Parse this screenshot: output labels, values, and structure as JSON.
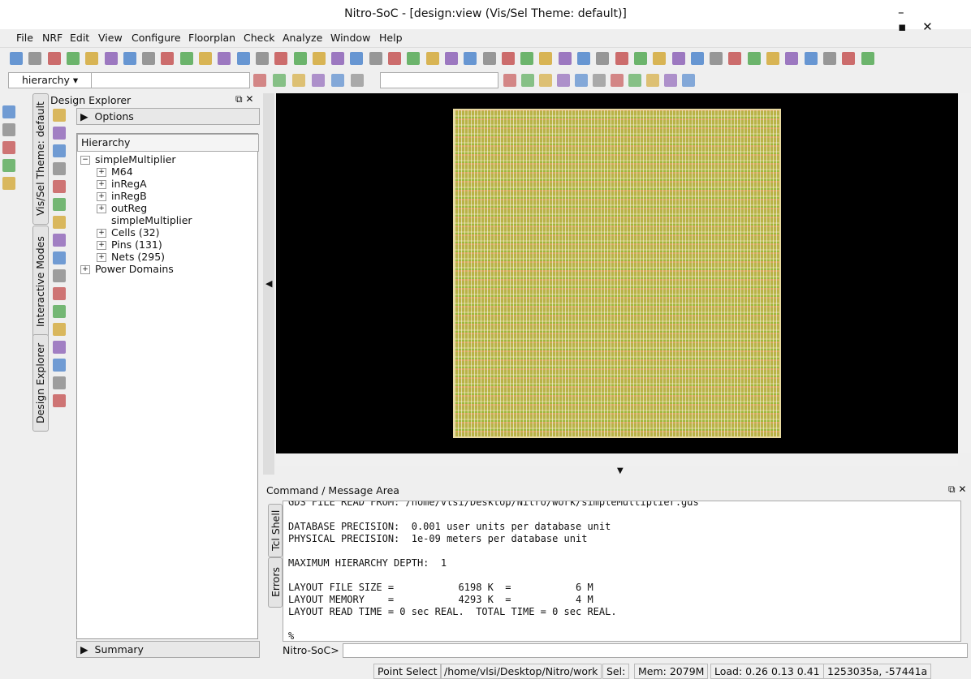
{
  "window": {
    "title": "Nitro-SoC - [design:view  (Vis/Sel Theme: default)]"
  },
  "menu": [
    "File",
    "NRF",
    "Edit",
    "View",
    "Configure",
    "Floorplan",
    "Check",
    "Analyze",
    "Window",
    "Help"
  ],
  "toolbar": {
    "hierarchy_select": "hierarchy"
  },
  "side_tabs": [
    "Vis/Sel Theme: default",
    "Interactive Modes",
    "Design Explorer"
  ],
  "explorer": {
    "title": "Design Explorer",
    "options": "Options",
    "hierarchy_label": "Hierarchy",
    "tree": [
      {
        "label": "simpleMultiplier",
        "children": [
          {
            "label": "M64"
          },
          {
            "label": "inRegA"
          },
          {
            "label": "inRegB"
          },
          {
            "label": "outReg"
          },
          {
            "label": "simpleMultiplier"
          },
          {
            "label": "Cells (32)"
          },
          {
            "label": "Pins (131)"
          },
          {
            "label": "Nets (295)"
          }
        ]
      },
      {
        "label": "Power Domains"
      }
    ],
    "summary": "Summary"
  },
  "command": {
    "title": "Command / Message Area",
    "tabs": [
      "Tcl Shell",
      "Errors"
    ],
    "blocks": [
      [
        "GDS FILE READ FROM: /home/vlsi/Desktop/Nitro/work/simpleMultiplier.gds"
      ],
      [
        "DATABASE PRECISION:  0.001 user units per database unit",
        "PHYSICAL PRECISION:  1e-09 meters per database unit"
      ],
      [
        "MAXIMUM HIERARCHY DEPTH:  1"
      ],
      [
        "LAYOUT FILE SIZE =           6198 K  =           6 M",
        "LAYOUT MEMORY    =           4293 K  =           4 M",
        "LAYOUT READ TIME = 0 sec REAL.  TOTAL TIME = 0 sec REAL."
      ],
      [
        "%"
      ]
    ],
    "prompt": "Nitro-SoC>"
  },
  "status": [
    "Point Select",
    "/home/vlsi/Desktop/Nitro/work",
    "Sel:",
    "Mem: 2079M",
    "Load: 0.26 0.13 0.41",
    "1253035a, -57441a"
  ]
}
